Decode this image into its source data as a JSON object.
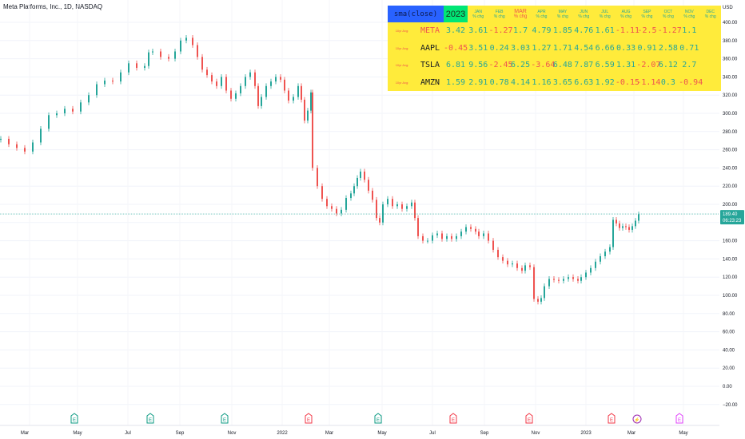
{
  "header": {
    "title": "Meta Platforms, Inc., 1D, NASDAQ"
  },
  "price_axis": {
    "currency": "USD",
    "ticks": [
      "400.00",
      "380.00",
      "360.00",
      "340.00",
      "320.00",
      "300.00",
      "280.00",
      "260.00",
      "240.00",
      "220.00",
      "200.00",
      "180.00",
      "160.00",
      "140.00",
      "120.00",
      "100.00",
      "80.00",
      "60.00",
      "40.00",
      "20.00",
      "0.00",
      "−20.00"
    ],
    "last_price": "189.40",
    "countdown": "06:23:23"
  },
  "time_axis": {
    "labels": [
      "Mar",
      "May",
      "Jul",
      "Sep",
      "Nov",
      "2022",
      "Mar",
      "May",
      "Jul",
      "Sep",
      "Nov",
      "2023",
      "Mar",
      "May"
    ]
  },
  "events": [
    {
      "label": "E",
      "color": "#089981"
    },
    {
      "label": "E",
      "color": "#089981"
    },
    {
      "label": "E",
      "color": "#089981"
    },
    {
      "label": "E",
      "color": "#f23645"
    },
    {
      "label": "E",
      "color": "#089981"
    },
    {
      "label": "E",
      "color": "#f23645"
    },
    {
      "label": "E",
      "color": "#f23645"
    },
    {
      "label": "E",
      "color": "#f23645"
    },
    {
      "label": "⚡",
      "color": "#9c27b0"
    },
    {
      "label": "E",
      "color": "#e040fb"
    }
  ],
  "seasonality_table": {
    "source_label": "sma(close)",
    "year_label": "2023",
    "month_sub": "% chg",
    "months": [
      "JAN",
      "FEB",
      "MAR",
      "APR",
      "MAY",
      "JUN",
      "JUL",
      "AUG",
      "SEP",
      "OCT",
      "NOV",
      "DEC"
    ],
    "row_label": "10yr Avg:",
    "rows": [
      {
        "symbol": "META",
        "values": [
          "3.42",
          "3.61",
          "-1.27",
          "1.7",
          "4.79",
          "1.85",
          "4.76",
          "1.61",
          "-1.11",
          "-2.5",
          "-1.27",
          "1.1"
        ]
      },
      {
        "symbol": "AAPL",
        "values": [
          "-0.45",
          "3.51",
          "0.24",
          "3.03",
          "1.27",
          "1.71",
          "4.54",
          "6.66",
          "0.33",
          "0.91",
          "2.58",
          "0.71"
        ]
      },
      {
        "symbol": "TSLA",
        "values": [
          "6.81",
          "9.56",
          "-2.45",
          "6.25",
          "-3.64",
          "6.48",
          "7.87",
          "6.59",
          "1.31",
          "-2.07",
          "6.12",
          "2.7"
        ]
      },
      {
        "symbol": "AMZN",
        "values": [
          "1.59",
          "2.91",
          "0.78",
          "4.14",
          "1.16",
          "3.65",
          "6.63",
          "1.92",
          "-0.15",
          "-1.14",
          "0.3",
          "-0.94"
        ]
      }
    ]
  },
  "chart_data": {
    "type": "candlestick",
    "series": [
      {
        "name": "",
        "values": [
          [
            0,
            272
          ],
          [
            10,
            266
          ],
          [
            20,
            262
          ],
          [
            30,
            258
          ],
          [
            40,
            268
          ],
          [
            50,
            283
          ],
          [
            60,
            298
          ],
          [
            70,
            300
          ],
          [
            80,
            305
          ],
          [
            90,
            302
          ],
          [
            100,
            312
          ],
          [
            110,
            320
          ],
          [
            120,
            332
          ],
          [
            130,
            336
          ],
          [
            140,
            335
          ],
          [
            150,
            345
          ],
          [
            160,
            355
          ],
          [
            170,
            350
          ],
          [
            180,
            352
          ],
          [
            185,
            367
          ],
          [
            190,
            368
          ],
          [
            200,
            362
          ],
          [
            210,
            360
          ],
          [
            218,
            368
          ],
          [
            225,
            380
          ],
          [
            232,
            383
          ],
          [
            240,
            375
          ],
          [
            246,
            362
          ],
          [
            252,
            348
          ],
          [
            258,
            342
          ],
          [
            264,
            335
          ],
          [
            270,
            330
          ],
          [
            276,
            340
          ],
          [
            282,
            325
          ],
          [
            288,
            316
          ],
          [
            294,
            322
          ],
          [
            300,
            330
          ],
          [
            306,
            340
          ],
          [
            312,
            345
          ],
          [
            318,
            330
          ],
          [
            322,
            308
          ],
          [
            326,
            318
          ],
          [
            332,
            330
          ],
          [
            338,
            335
          ],
          [
            344,
            340
          ],
          [
            350,
            337
          ],
          [
            355,
            325
          ],
          [
            360,
            314
          ],
          [
            366,
            318
          ],
          [
            372,
            330
          ],
          [
            376,
            315
          ],
          [
            380,
            292
          ],
          [
            384,
            303
          ],
          [
            388,
            323
          ],
          [
            390,
            240
          ],
          [
            396,
            220
          ],
          [
            402,
            206
          ],
          [
            408,
            198
          ],
          [
            414,
            195
          ],
          [
            420,
            190
          ],
          [
            426,
            194
          ],
          [
            432,
            207
          ],
          [
            438,
            212
          ],
          [
            442,
            220
          ],
          [
            446,
            229
          ],
          [
            450,
            236
          ],
          [
            455,
            227
          ],
          [
            460,
            215
          ],
          [
            465,
            205
          ],
          [
            470,
            185
          ],
          [
            474,
            180
          ],
          [
            478,
            200
          ],
          [
            484,
            206
          ],
          [
            490,
            198
          ],
          [
            496,
            200
          ],
          [
            502,
            195
          ],
          [
            508,
            198
          ],
          [
            514,
            202
          ],
          [
            518,
            185
          ],
          [
            522,
            165
          ],
          [
            528,
            160
          ],
          [
            534,
            160
          ],
          [
            540,
            166
          ],
          [
            546,
            168
          ],
          [
            552,
            162
          ],
          [
            558,
            165
          ],
          [
            564,
            162
          ],
          [
            570,
            165
          ],
          [
            576,
            170
          ],
          [
            582,
            175
          ],
          [
            588,
            173
          ],
          [
            594,
            170
          ],
          [
            598,
            165
          ],
          [
            604,
            168
          ],
          [
            610,
            160
          ],
          [
            616,
            150
          ],
          [
            622,
            142
          ],
          [
            628,
            138
          ],
          [
            634,
            134
          ],
          [
            640,
            135
          ],
          [
            646,
            130
          ],
          [
            652,
            127
          ],
          [
            656,
            133
          ],
          [
            662,
            131
          ],
          [
            667,
            96
          ],
          [
            672,
            93
          ],
          [
            676,
            97
          ],
          [
            680,
            110
          ],
          [
            686,
            118
          ],
          [
            692,
            117
          ],
          [
            698,
            116
          ],
          [
            704,
            118
          ],
          [
            710,
            120
          ],
          [
            716,
            118
          ],
          [
            722,
            116
          ],
          [
            726,
            120
          ],
          [
            732,
            125
          ],
          [
            738,
            130
          ],
          [
            744,
            137
          ],
          [
            750,
            143
          ],
          [
            756,
            148
          ],
          [
            762,
            153
          ],
          [
            766,
            183
          ],
          [
            770,
            179
          ],
          [
            774,
            174
          ],
          [
            778,
            176
          ],
          [
            782,
            175
          ],
          [
            786,
            172
          ],
          [
            790,
            176
          ],
          [
            794,
            182
          ],
          [
            798,
            189
          ]
        ]
      }
    ],
    "ylim": [
      -20,
      410
    ],
    "last_value": 189.4
  }
}
